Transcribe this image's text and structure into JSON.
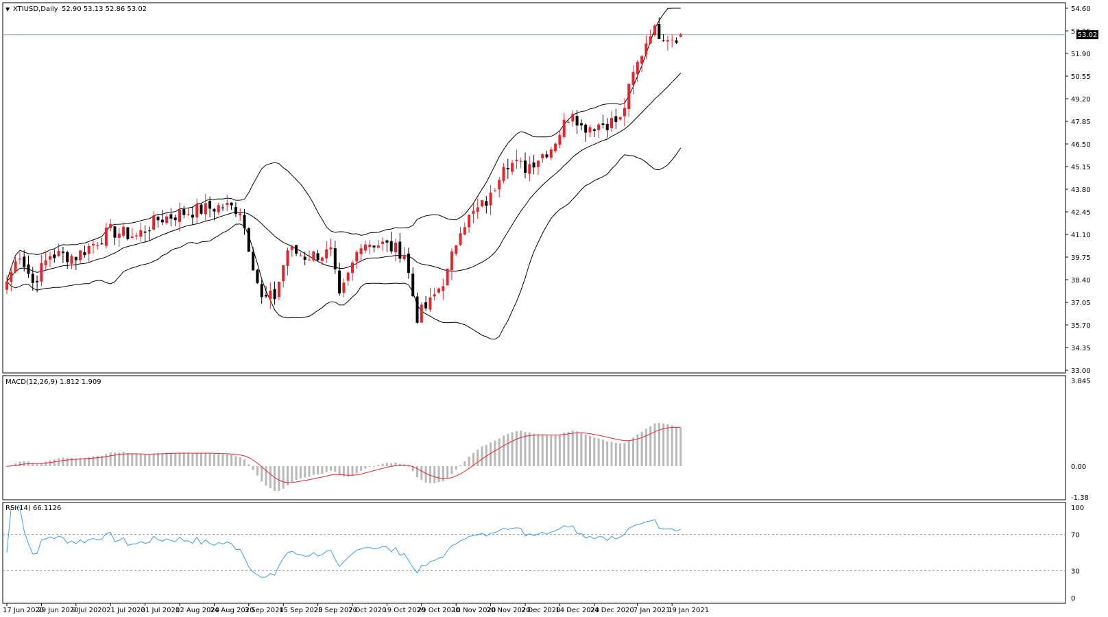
{
  "symbol_label": "XTIUSD,Daily",
  "ohlc_label": "52.90 53.13 52.86 53.02",
  "price": {
    "current": 53.02,
    "current_label": "53.02",
    "ticks": [
      "54.60",
      "53.25",
      "51.90",
      "50.55",
      "49.20",
      "47.85",
      "46.50",
      "45.15",
      "43.80",
      "42.45",
      "41.10",
      "39.75",
      "38.40",
      "37.05",
      "35.70",
      "34.35",
      "33.00"
    ],
    "range": [
      33.0,
      54.6
    ]
  },
  "macd": {
    "label": "MACD(12,26,9) 1.812 1.909",
    "ticks": [
      "3.845",
      "0.00",
      "-1.38"
    ],
    "range": [
      -1.38,
      3.845
    ]
  },
  "rsi": {
    "label": "RSI(14) 66.1126",
    "ticks": [
      "100",
      "70",
      "30",
      "0"
    ],
    "levels": [
      70,
      30
    ]
  },
  "date_ticks": [
    "17 Jun 2020",
    "29 Jun 2020",
    "9 Jul 2020",
    "21 Jul 2020",
    "31 Jul 2020",
    "12 Aug 2020",
    "24 Aug 2020",
    "3 Sep 2020",
    "15 Sep 2020",
    "25 Sep 2020",
    "7 Oct 2020",
    "19 Oct 2020",
    "29 Oct 2020",
    "10 Nov 2020",
    "20 Nov 2020",
    "2 Dec 2020",
    "14 Dec 2020",
    "24 Dec 2020",
    "7 Jan 2021",
    "19 Jan 2021"
  ],
  "colors": {
    "bull": "#e8232b",
    "bear": "#000000",
    "signal": "#e8232b",
    "rsi": "#3c9be8",
    "hist": "#b8b8b8",
    "price_line": "#9aa7b4"
  },
  "chart_data": [
    {
      "type": "candlestick",
      "title": "XTIUSD,Daily",
      "x_range": [
        "17 Jun 2020",
        "21 Jan 2021"
      ],
      "ylim": [
        33.0,
        54.6
      ],
      "anchors": [
        {
          "date": "17 Jun 2020",
          "close": 38.3
        },
        {
          "date": "22 Jun 2020",
          "close": 40.0
        },
        {
          "date": "25 Jun 2020",
          "close": 38.2
        },
        {
          "date": "1 Jul 2020",
          "close": 39.9
        },
        {
          "date": "9 Jul 2020",
          "close": 39.8
        },
        {
          "date": "21 Jul 2020",
          "close": 41.3
        },
        {
          "date": "29 Jul 2020",
          "close": 41.0
        },
        {
          "date": "5 Aug 2020",
          "close": 42.0
        },
        {
          "date": "13 Aug 2020",
          "close": 42.4
        },
        {
          "date": "26 Aug 2020",
          "close": 42.8
        },
        {
          "date": "1 Sep 2020",
          "close": 42.6
        },
        {
          "date": "8 Sep 2020",
          "close": 37.2
        },
        {
          "date": "11 Sep 2020",
          "close": 37.4
        },
        {
          "date": "16 Sep 2020",
          "close": 40.2
        },
        {
          "date": "22 Sep 2020",
          "close": 39.8
        },
        {
          "date": "30 Sep 2020",
          "close": 40.0
        },
        {
          "date": "2 Oct 2020",
          "close": 37.2
        },
        {
          "date": "9 Oct 2020",
          "close": 40.7
        },
        {
          "date": "16 Oct 2020",
          "close": 40.5
        },
        {
          "date": "23 Oct 2020",
          "close": 40.0
        },
        {
          "date": "28 Oct 2020",
          "close": 36.2
        },
        {
          "date": "2 Nov 2020",
          "close": 37.0
        },
        {
          "date": "6 Nov 2020",
          "close": 38.8
        },
        {
          "date": "11 Nov 2020",
          "close": 41.6
        },
        {
          "date": "20 Nov 2020",
          "close": 43.3
        },
        {
          "date": "25 Nov 2020",
          "close": 45.5
        },
        {
          "date": "2 Dec 2020",
          "close": 45.1
        },
        {
          "date": "10 Dec 2020",
          "close": 46.3
        },
        {
          "date": "17 Dec 2020",
          "close": 48.6
        },
        {
          "date": "21 Dec 2020",
          "close": 47.5
        },
        {
          "date": "1 Jan 2021",
          "close": 47.9
        },
        {
          "date": "6 Jan 2021",
          "close": 50.6
        },
        {
          "date": "12 Jan 2021",
          "close": 53.3
        },
        {
          "date": "19 Jan 2021",
          "close": 52.9
        },
        {
          "date": "21 Jan 2021",
          "close": 53.02
        }
      ],
      "last_bar": {
        "date": "21 Jan 2021",
        "open": 52.9,
        "high": 53.13,
        "low": 52.86,
        "close": 53.02
      },
      "indicators": [
        "Bollinger Bands",
        "MACD(12,26,9)",
        "RSI(14)"
      ]
    }
  ]
}
